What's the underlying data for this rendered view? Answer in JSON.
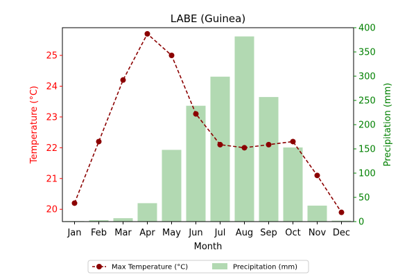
{
  "chart_data": {
    "type": "bar+line",
    "title": "LABE (Guinea)",
    "xlabel": "Month",
    "categories": [
      "Jan",
      "Feb",
      "Mar",
      "Apr",
      "May",
      "Jun",
      "Jul",
      "Aug",
      "Sep",
      "Oct",
      "Nov",
      "Dec"
    ],
    "temperature": {
      "name": "Max Temperature (°C)",
      "axis_label": "Temperature (°C)",
      "axis_color": "#ff0000",
      "line_color": "#8b0000",
      "line_style": "dashed",
      "marker": "circle",
      "ylim": [
        19.6,
        25.9
      ],
      "yticks": [
        20,
        21,
        22,
        23,
        24,
        25
      ],
      "values": [
        20.2,
        22.2,
        24.2,
        25.7,
        25.0,
        23.1,
        22.1,
        22.0,
        22.1,
        22.2,
        21.1,
        19.9
      ]
    },
    "precipitation": {
      "name": "Precipitation (mm)",
      "axis_label": "Precipitation (mm)",
      "axis_color": "#008000",
      "bar_color": "#b2d9b2",
      "ylim": [
        0,
        400
      ],
      "yticks": [
        0,
        50,
        100,
        150,
        200,
        250,
        300,
        350,
        400
      ],
      "values": [
        1,
        3,
        7,
        38,
        148,
        239,
        299,
        382,
        257,
        153,
        33,
        2
      ]
    },
    "legend_position": "bottom-center",
    "grid": false
  }
}
